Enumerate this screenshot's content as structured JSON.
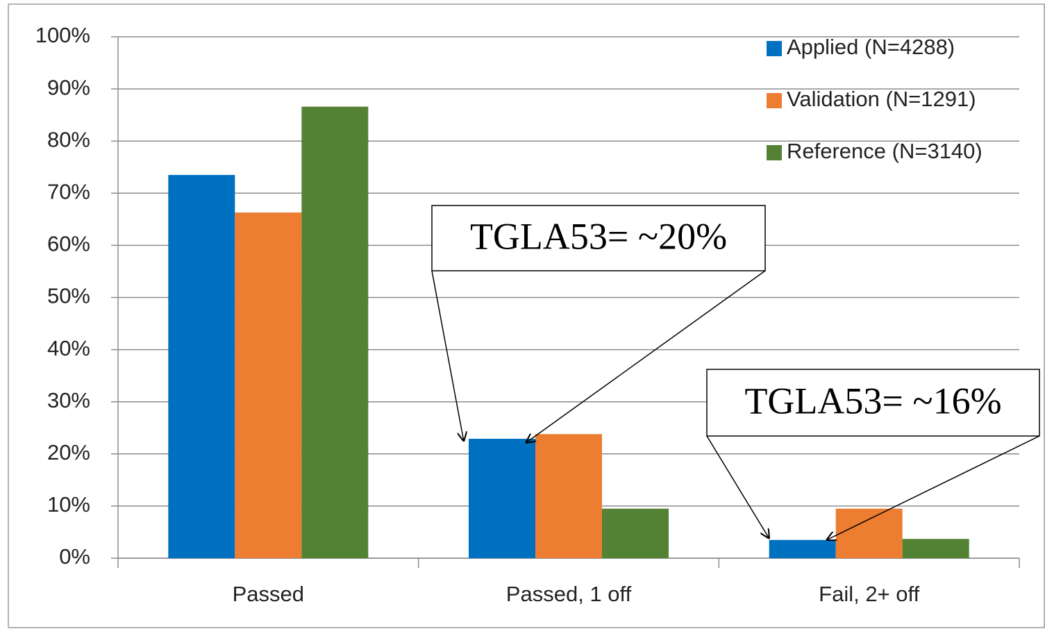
{
  "chart_data": {
    "type": "bar",
    "categories": [
      "Passed",
      "Passed, 1 off",
      "Fail, 2+ off"
    ],
    "series": [
      {
        "name": "Applied (N=4288)",
        "color": "#0070c0",
        "values": [
          73.5,
          22.9,
          3.5
        ]
      },
      {
        "name": "Validation (N=1291)",
        "color": "#ed7d31",
        "values": [
          66.3,
          23.8,
          9.5
        ]
      },
      {
        "name": "Reference (N=3140)",
        "color": "#548235",
        "values": [
          86.6,
          9.5,
          3.7
        ]
      }
    ],
    "ylim": [
      0,
      100
    ],
    "yticks": [
      {
        "value": 0,
        "label": "0%"
      },
      {
        "value": 10,
        "label": "10%"
      },
      {
        "value": 20,
        "label": "20%"
      },
      {
        "value": 30,
        "label": "30%"
      },
      {
        "value": 40,
        "label": "40%"
      },
      {
        "value": 50,
        "label": "50%"
      },
      {
        "value": 60,
        "label": "60%"
      },
      {
        "value": 70,
        "label": "70%"
      },
      {
        "value": 80,
        "label": "80%"
      },
      {
        "value": 90,
        "label": "90%"
      },
      {
        "value": 100,
        "label": "100%"
      }
    ],
    "grid": true,
    "legend": "top-right",
    "annotations": [
      "TGLA53= ~20%",
      "TGLA53= ~16%"
    ]
  }
}
